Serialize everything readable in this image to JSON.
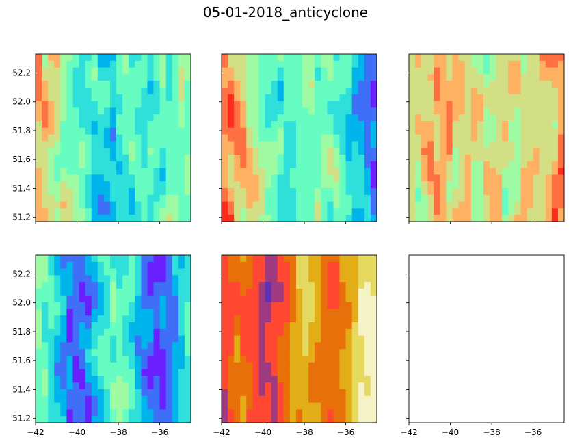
{
  "figure": {
    "title": "05-01-2018_anticyclone"
  },
  "chart_data": {
    "type": "contourf",
    "layout": "2 rows x 3 columns, shared x and y axes",
    "title": "05-01-2018_anticyclone",
    "xlim": [
      -42.0,
      -34.5
    ],
    "ylim": [
      51.17,
      52.33
    ],
    "x_ticks": [
      -42,
      -40,
      -38,
      -36
    ],
    "y_ticks": [
      51.2,
      51.4,
      51.6,
      51.8,
      52.0,
      52.2
    ],
    "x_tick_labels": [
      "−42",
      "−40",
      "−38",
      "−36"
    ],
    "y_tick_labels": [
      "51.2",
      "51.4",
      "51.6",
      "51.8",
      "52.0",
      "52.2"
    ],
    "panels": [
      {
        "row": 0,
        "col": 0,
        "colormap": "rainbow",
        "empty": false
      },
      {
        "row": 0,
        "col": 1,
        "colormap": "rainbow",
        "empty": false
      },
      {
        "row": 0,
        "col": 2,
        "colormap": "rainbow",
        "empty": false
      },
      {
        "row": 1,
        "col": 0,
        "colormap": "rainbow",
        "empty": false
      },
      {
        "row": 1,
        "col": 1,
        "colormap": "CMRmap",
        "empty": false
      },
      {
        "row": 1,
        "col": 2,
        "colormap": "none",
        "empty": true
      }
    ],
    "rainbow_colors": [
      "#6a1fff",
      "#3f6ff6",
      "#00b4ec",
      "#2fe0da",
      "#67fcc1",
      "#9ffba3",
      "#d2df84",
      "#ffb163",
      "#ff7142",
      "#ff2a1e"
    ],
    "cmrmap_colors": [
      "#26206e",
      "#5e31b3",
      "#a03a80",
      "#ff4732",
      "#e7700b",
      "#e2ad17",
      "#e5d960",
      "#f5f3c6"
    ],
    "grid": false,
    "legend": "none"
  }
}
